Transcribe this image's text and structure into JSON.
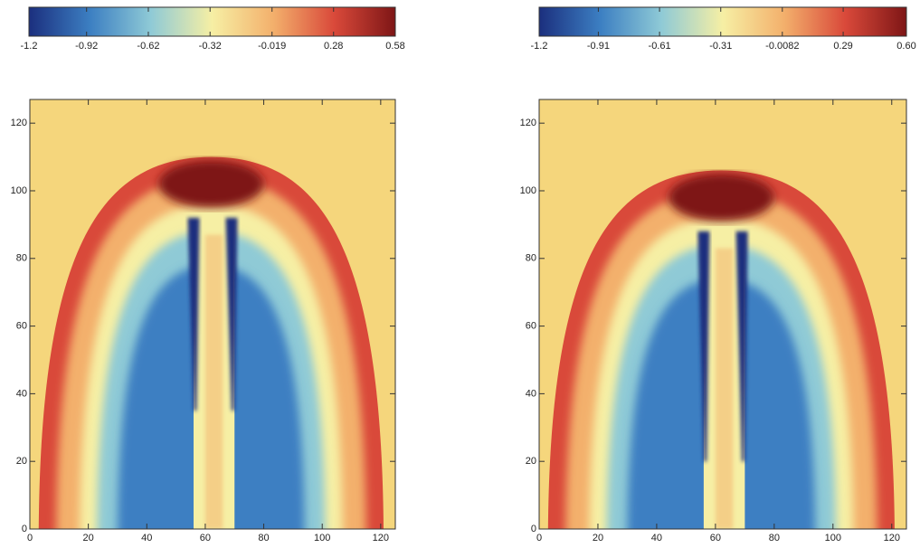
{
  "chart_data": [
    {
      "type": "heatmap",
      "colormap": [
        "#1b2f7e",
        "#3c7fc2",
        "#8fcad6",
        "#f6efa4",
        "#f3b06c",
        "#d9493a",
        "#7e1616"
      ],
      "colorbar_lim": [
        -1.2,
        0.58
      ],
      "colorbar_ticks": [
        -1.2,
        -0.92,
        -0.62,
        -0.32,
        -0.019,
        0.28,
        0.58
      ],
      "xlim": [
        0,
        125
      ],
      "xticks": [
        0,
        20,
        40,
        60,
        80,
        100,
        120
      ],
      "ylim": [
        0,
        127
      ],
      "yticks": [
        0,
        20,
        40,
        60,
        80,
        100,
        120
      ]
    },
    {
      "type": "heatmap",
      "colormap": [
        "#1b2f7e",
        "#3c7fc2",
        "#8fcad6",
        "#f6efa4",
        "#f3b06c",
        "#d9493a",
        "#7e1616"
      ],
      "colorbar_lim": [
        -1.2,
        0.6
      ],
      "colorbar_ticks": [
        -1.2,
        -0.91,
        -0.61,
        -0.31,
        -0.0082,
        0.29,
        {
          "value": 0.6,
          "label": "0.60"
        }
      ],
      "xlim": [
        0,
        125
      ],
      "xticks": [
        0,
        20,
        40,
        60,
        80,
        100,
        120
      ],
      "ylim": [
        0,
        127
      ],
      "yticks": [
        0,
        20,
        40,
        60,
        80,
        100,
        120
      ]
    }
  ]
}
